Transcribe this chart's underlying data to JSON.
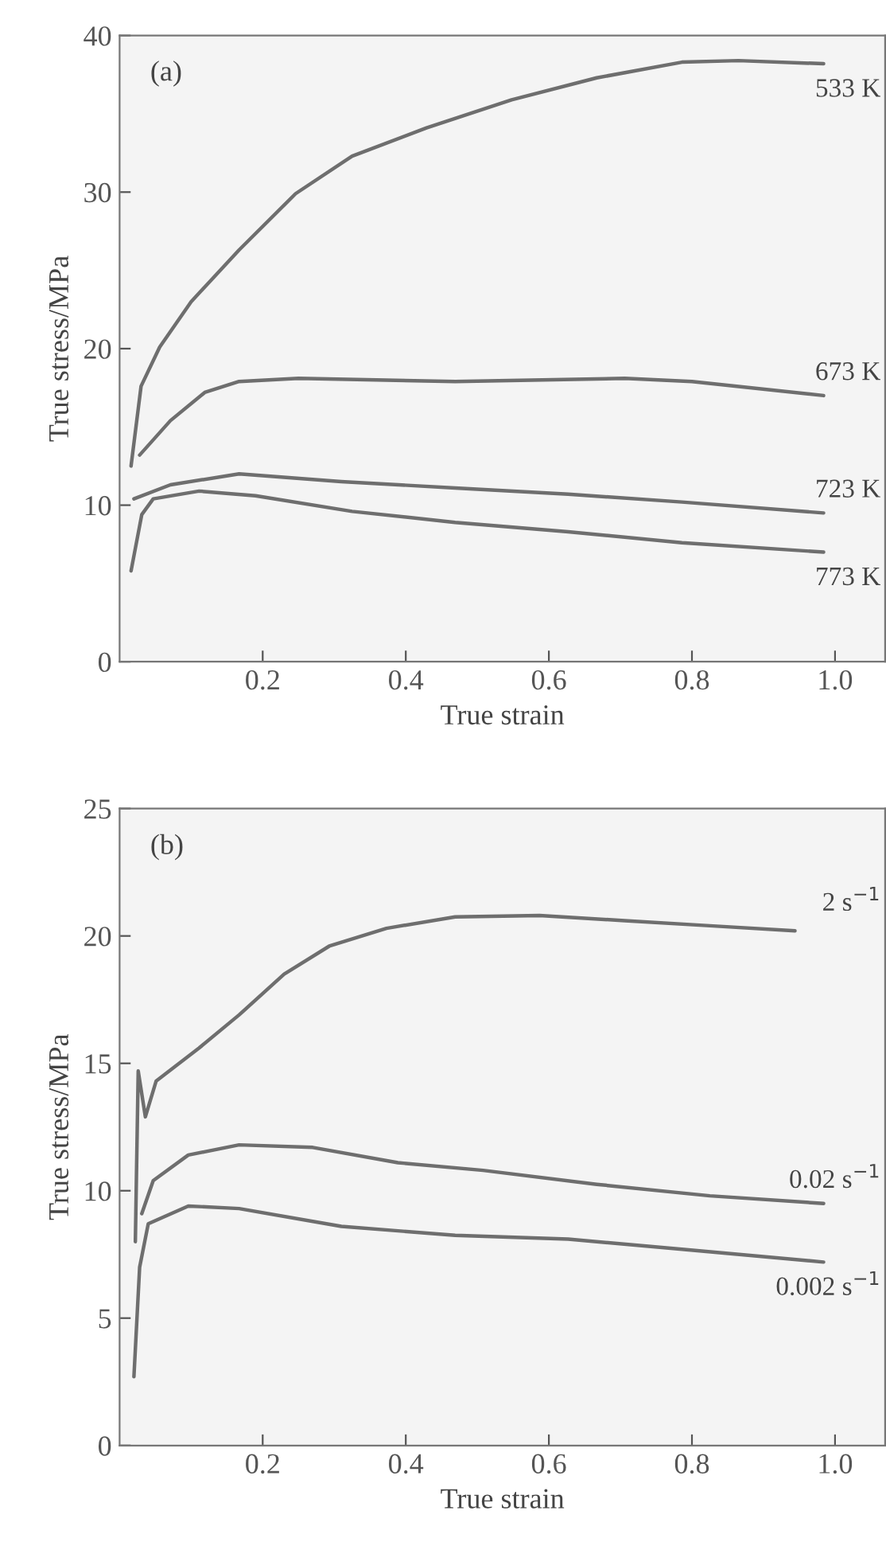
{
  "chart_data": [
    {
      "type": "line",
      "xlabel": "True strain",
      "ylabel": "True stress/MPa",
      "annotations": [
        "(a)"
      ],
      "xlim": [
        0,
        1.07
      ],
      "ylim": [
        0,
        40
      ],
      "xticks": [
        0.2,
        0.4,
        0.6,
        0.8,
        {
          "value": 1,
          "label": "1.0"
        }
      ],
      "yticks": [
        0,
        10,
        20,
        30,
        40
      ],
      "grid": false,
      "legend": false,
      "marker": "none",
      "line_style": "solid",
      "series": [
        {
          "name": "533 K",
          "color": "#6e6e6e",
          "x": [
            0.016,
            0.03,
            0.056,
            0.1,
            0.167,
            0.246,
            0.325,
            0.429,
            0.548,
            0.667,
            0.786,
            0.865,
            0.984
          ],
          "values": [
            12.5,
            17.6,
            20.1,
            23.0,
            26.3,
            29.9,
            32.3,
            34.1,
            35.9,
            37.3,
            38.3,
            38.4,
            38.2
          ]
        },
        {
          "name": "673 K",
          "color": "#6e6e6e",
          "x": [
            0.028,
            0.071,
            0.119,
            0.167,
            0.25,
            0.469,
            0.706,
            0.8,
            0.984
          ],
          "values": [
            13.2,
            15.4,
            17.2,
            17.9,
            18.1,
            17.9,
            18.1,
            17.9,
            17.0
          ]
        },
        {
          "name": "723 K",
          "color": "#6e6e6e",
          "x": [
            0.02,
            0.071,
            0.167,
            0.31,
            0.469,
            0.627,
            0.786,
            0.984
          ],
          "values": [
            10.4,
            11.3,
            12.0,
            11.5,
            11.1,
            10.7,
            10.2,
            9.5
          ]
        },
        {
          "name": "773 K",
          "color": "#6e6e6e",
          "x": [
            0.016,
            0.031,
            0.047,
            0.111,
            0.19,
            0.325,
            0.469,
            0.627,
            0.786,
            0.984
          ],
          "values": [
            5.8,
            9.4,
            10.4,
            10.9,
            10.6,
            9.6,
            8.9,
            8.3,
            7.6,
            7.0
          ]
        }
      ]
    },
    {
      "type": "line",
      "xlabel": "True strain",
      "ylabel": "True stress/MPa",
      "annotations": [
        "(b)"
      ],
      "xlim": [
        0,
        1.07
      ],
      "ylim": [
        0,
        25
      ],
      "xticks": [
        0.2,
        0.4,
        0.6,
        0.8,
        {
          "value": 1,
          "label": "1.0"
        }
      ],
      "yticks": [
        0,
        5,
        10,
        15,
        20,
        25
      ],
      "grid": false,
      "legend": false,
      "marker": "none",
      "line_style": "solid",
      "series": [
        {
          "name": "2 s$^{−1}$",
          "color": "#6e6e6e",
          "x": [
            0.022,
            0.026,
            0.036,
            0.051,
            0.111,
            0.167,
            0.23,
            0.293,
            0.373,
            0.469,
            0.587,
            0.706,
            0.825,
            0.944
          ],
          "values": [
            8.0,
            14.7,
            12.9,
            14.3,
            15.6,
            16.9,
            18.5,
            19.6,
            20.3,
            20.75,
            20.8,
            20.6,
            20.4,
            20.2
          ]
        },
        {
          "name": "0.02 s$^{−1}$",
          "color": "#6e6e6e",
          "x": [
            0.031,
            0.047,
            0.096,
            0.167,
            0.27,
            0.389,
            0.508,
            0.667,
            0.825,
            0.984
          ],
          "values": [
            9.1,
            10.4,
            11.4,
            11.8,
            11.7,
            11.1,
            10.8,
            10.25,
            9.8,
            9.5
          ]
        },
        {
          "name": "0.002 s$^{−1}$",
          "color": "#6e6e6e",
          "x": [
            0.02,
            0.028,
            0.04,
            0.096,
            0.167,
            0.31,
            0.469,
            0.627,
            0.786,
            0.984
          ],
          "values": [
            2.7,
            7.0,
            8.7,
            9.4,
            9.3,
            8.6,
            8.25,
            8.1,
            7.7,
            7.2
          ]
        }
      ]
    }
  ]
}
